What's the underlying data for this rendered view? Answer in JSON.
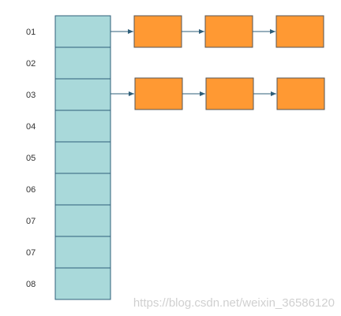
{
  "rows": [
    "01",
    "02",
    "03",
    "04",
    "05",
    "06",
    "07",
    "07",
    "08"
  ],
  "watermark": "https://blog.csdn.net/weixin_36586120"
}
